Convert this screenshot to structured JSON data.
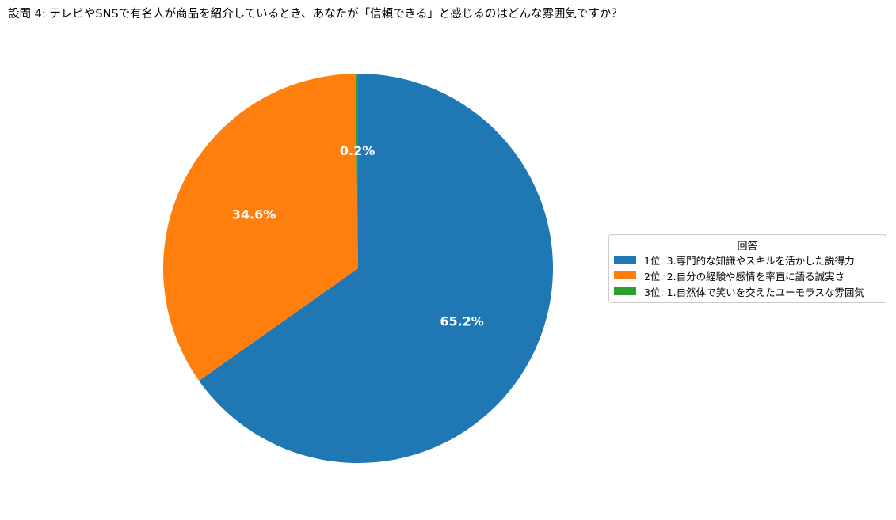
{
  "chart_data": {
    "type": "pie",
    "title": "設問 4: テレビやSNSで有名人が商品を紹介しているとき、あなたが「信頼できる」と感じるのはどんな雰囲気ですか？",
    "categories": [
      "1位: 3.専門的な知識やスキルを活かした説得力",
      "2位: 2.自分の経験や感情を率直に語る誠実さ",
      "3位: 1.自然体で笑いを交えたユーモラスな雰囲気"
    ],
    "values": [
      65.2,
      34.6,
      0.2
    ],
    "labels": [
      "65.2%",
      "34.6%",
      "0.2%"
    ],
    "colors": [
      "#1f77b4",
      "#ff7f0e",
      "#2ca02c"
    ],
    "legend": {
      "title": "回答",
      "placement": "center-right"
    },
    "start_angle_deg": 90,
    "direction": "clockwise"
  }
}
